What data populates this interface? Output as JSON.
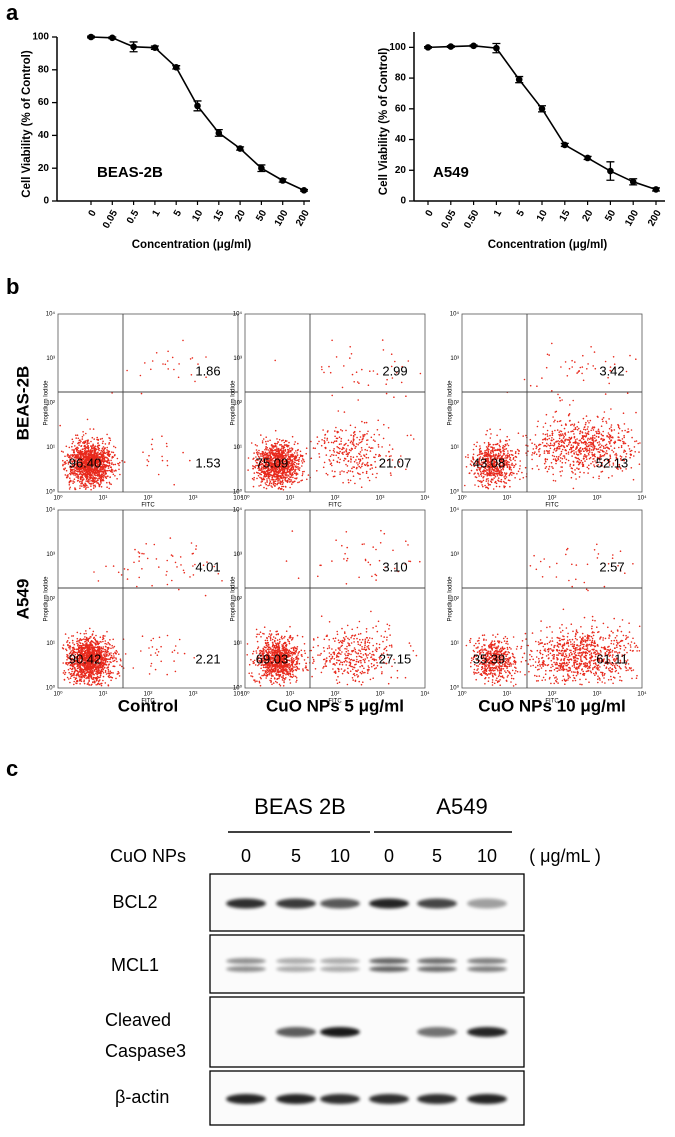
{
  "panel_labels": [
    "a",
    "b",
    "c"
  ],
  "chart_data": [
    {
      "type": "line",
      "annotation": "BEAS-2B",
      "xlabel": "Concentration (μg/ml)",
      "ylabel": "Cell Viability (% of Control)",
      "categories": [
        "0",
        "0.05",
        "0.5",
        "1",
        "5",
        "10",
        "15",
        "20",
        "50",
        "100",
        "200"
      ],
      "values": [
        100,
        99.5,
        94,
        93.5,
        81.5,
        58,
        41.5,
        32,
        20,
        12.5,
        6.5
      ],
      "errors": [
        0.5,
        0.5,
        3,
        1,
        1,
        3,
        2,
        1,
        2,
        1,
        0.5
      ],
      "color": "#000000",
      "ylim": [
        0,
        100
      ],
      "yticks": [
        0,
        20,
        40,
        60,
        80,
        100
      ]
    },
    {
      "type": "line",
      "annotation": "A549",
      "xlabel": "Concentration (μg/ml)",
      "ylabel": "Cell Viability (% of Control)",
      "categories": [
        "0",
        "0.05",
        "0.50",
        "1",
        "5",
        "10",
        "15",
        "20",
        "50",
        "100",
        "200"
      ],
      "values": [
        100,
        100.5,
        101,
        99.5,
        79,
        60,
        36.5,
        28,
        19.5,
        12.5,
        7.5
      ],
      "errors": [
        0.5,
        0.5,
        0.5,
        3,
        2,
        2,
        1,
        1,
        6,
        2,
        1
      ],
      "color": "#000000",
      "ylim": [
        0,
        110
      ],
      "yticks": [
        0,
        20,
        40,
        60,
        80,
        100
      ]
    }
  ],
  "flow_cytometry": {
    "rows": [
      "BEAS-2B",
      "A549"
    ],
    "columns": [
      "Control",
      "CuO NPs 5 μg/ml",
      "CuO NPs 10 μg/ml"
    ],
    "x_label": "FITC",
    "y_label": "Propidium Iodide",
    "axis_ticks": [
      "10⁰",
      "10¹",
      "10²",
      "10³",
      "10⁴"
    ],
    "quadrants": [
      [
        [
          "1.86",
          "1.53",
          "96.40"
        ],
        [
          "2.99",
          "21.07",
          "75.09"
        ],
        [
          "3.42",
          "52.13",
          "43.08"
        ]
      ],
      [
        [
          "4.01",
          "2.21",
          "90.42"
        ],
        [
          "3.10",
          "27.15",
          "69.03"
        ],
        [
          "2.57",
          "61.11",
          "35.39"
        ]
      ]
    ]
  },
  "western_blot": {
    "groups": [
      "BEAS 2B",
      "A549"
    ],
    "treatment": "CuO NPs",
    "doses": [
      "0",
      "5",
      "10",
      "0",
      "5",
      "10"
    ],
    "unit": "( μg/mL )",
    "proteins": [
      [
        "BCL2"
      ],
      [
        "MCL1"
      ],
      [
        "Cleaved",
        "Caspase3"
      ],
      [
        "β-actin"
      ]
    ]
  }
}
